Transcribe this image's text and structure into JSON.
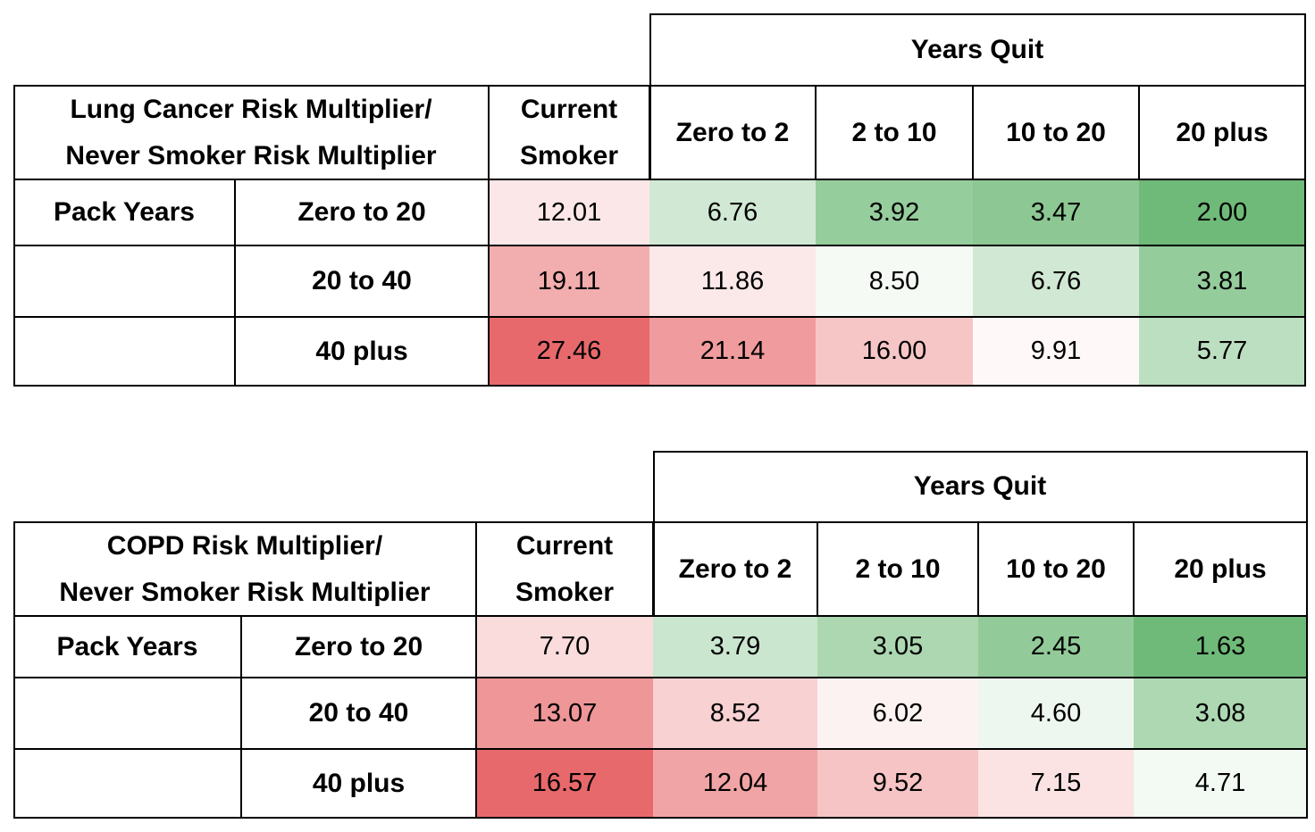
{
  "chart_data": [
    {
      "type": "heatmap",
      "title": "Lung Cancer Risk Multiplier/ Never Smoker Risk Multiplier",
      "title_lines": [
        "Lung Cancer Risk Multiplier/",
        "Never Smoker Risk Multiplier"
      ],
      "column_group_label": "Years Quit",
      "current_smoker_lines": [
        "Current",
        "Smoker"
      ],
      "columns": [
        "Current Smoker",
        "Zero to 2",
        "2 to 10",
        "10 to 20",
        "20 plus"
      ],
      "row_group_label": "Pack Years",
      "rows": [
        "Zero to 20",
        "20 to 40",
        "40 plus"
      ],
      "values": [
        [
          "12.01",
          "6.76",
          "3.92",
          "3.47",
          "2.00"
        ],
        [
          "19.11",
          "11.86",
          "8.50",
          "6.76",
          "3.81"
        ],
        [
          "27.46",
          "21.14",
          "16.00",
          "9.91",
          "5.77"
        ]
      ],
      "color_scale": {
        "low": "#6fba78",
        "mid": "#ffffff",
        "high": "#e8696b"
      }
    },
    {
      "type": "heatmap",
      "title": "COPD Risk Multiplier/ Never Smoker Risk Multiplier",
      "title_lines": [
        "COPD Risk Multiplier/",
        "Never Smoker Risk Multiplier"
      ],
      "column_group_label": "Years Quit",
      "current_smoker_lines": [
        "Current",
        "Smoker"
      ],
      "columns": [
        "Current Smoker",
        "Zero to 2",
        "2 to 10",
        "10 to 20",
        "20 plus"
      ],
      "row_group_label": "Pack Years",
      "rows": [
        "Zero to 20",
        "20 to 40",
        "40 plus"
      ],
      "values": [
        [
          "7.70",
          "3.79",
          "3.05",
          "2.45",
          "1.63"
        ],
        [
          "13.07",
          "8.52",
          "6.02",
          "4.60",
          "3.08"
        ],
        [
          "16.57",
          "12.04",
          "9.52",
          "7.15",
          "4.71"
        ]
      ],
      "color_scale": {
        "low": "#6fba78",
        "mid": "#ffffff",
        "high": "#e8696b"
      }
    }
  ]
}
